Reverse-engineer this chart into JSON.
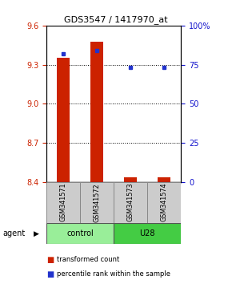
{
  "title": "GDS3547 / 1417970_at",
  "samples": [
    "GSM341571",
    "GSM341572",
    "GSM341573",
    "GSM341574"
  ],
  "transformed_counts": [
    9.35,
    9.475,
    8.435,
    8.435
  ],
  "percentile_ranks": [
    82,
    84,
    73,
    73
  ],
  "bar_bottom": 8.4,
  "ylim_left": [
    8.4,
    9.6
  ],
  "ylim_right": [
    0,
    100
  ],
  "yticks_left": [
    8.4,
    8.7,
    9.0,
    9.3,
    9.6
  ],
  "yticks_right": [
    0,
    25,
    50,
    75,
    100
  ],
  "bar_color": "#cc2200",
  "dot_color": "#2233cc",
  "control_color": "#99ee99",
  "u28_color": "#44cc44",
  "legend_red": "transformed count",
  "legend_blue": "percentile rank within the sample",
  "left_color": "#cc2200",
  "right_color": "#1111cc",
  "sample_box_color": "#cccccc",
  "sample_box_edge": "#888888",
  "group_spans": [
    {
      "label": "control",
      "start": 0,
      "end": 1,
      "color": "#99ee99"
    },
    {
      "label": "U28",
      "start": 2,
      "end": 3,
      "color": "#44cc44"
    }
  ]
}
